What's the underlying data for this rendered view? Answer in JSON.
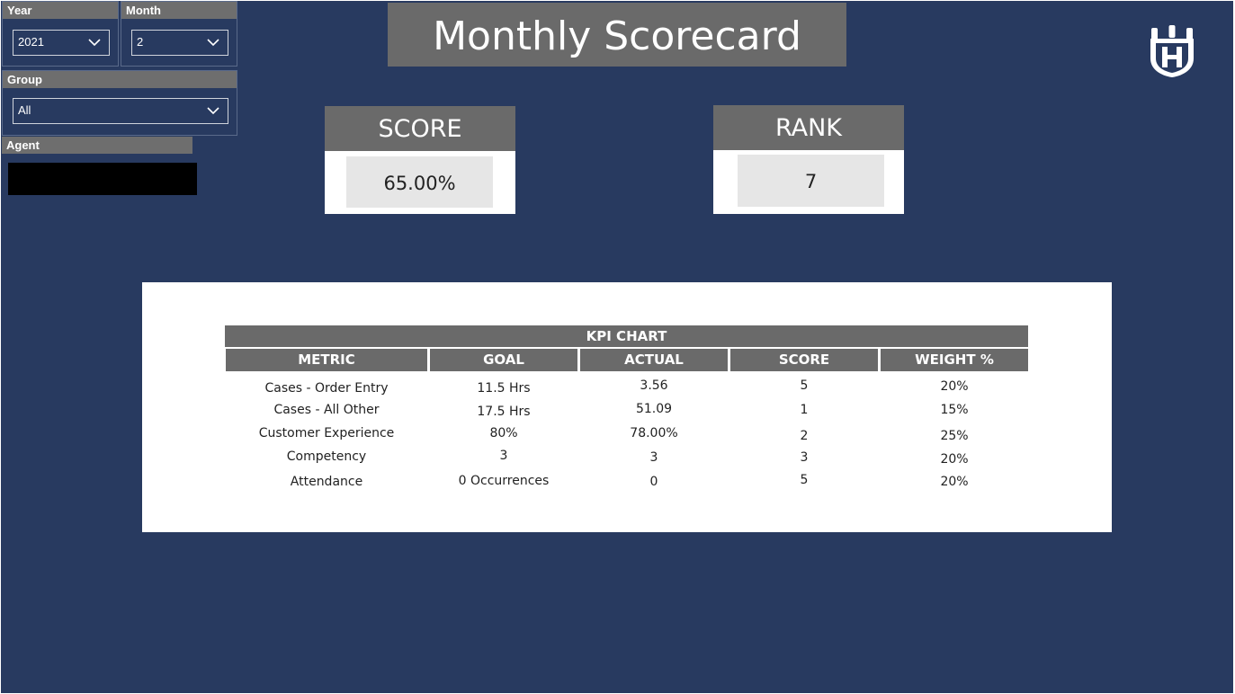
{
  "filters": {
    "year": {
      "label": "Year",
      "value": "2021"
    },
    "month": {
      "label": "Month",
      "value": "2"
    },
    "group": {
      "label": "Group",
      "value": "All"
    },
    "agent": {
      "label": "Agent"
    }
  },
  "header": {
    "title": "Monthly Scorecard",
    "logo_icon": "husqvarna-logo-icon"
  },
  "score_card": {
    "label": "SCORE",
    "value": "65.00%"
  },
  "rank_card": {
    "label": "RANK",
    "value": "7"
  },
  "kpi_table": {
    "title": "KPI CHART",
    "columns": [
      "METRIC",
      "GOAL",
      "ACTUAL",
      "SCORE",
      "WEIGHT %"
    ],
    "rows": [
      [
        "Cases - Order Entry",
        "11.5 Hrs",
        "3.56",
        "5",
        "20%"
      ],
      [
        "Cases - All Other",
        "17.5 Hrs",
        "51.09",
        "1",
        "15%"
      ],
      [
        "Customer Experience",
        "80%",
        "78.00%",
        "2",
        "25%"
      ],
      [
        "Competency",
        "3",
        "3",
        "3",
        "20%"
      ],
      [
        "Attendance",
        "0 Occurrences",
        "0",
        "5",
        "20%"
      ]
    ]
  },
  "colors": {
    "background": "#283a60",
    "header_gray": "#6a6a6a",
    "value_bg": "#e6e6e6"
  }
}
